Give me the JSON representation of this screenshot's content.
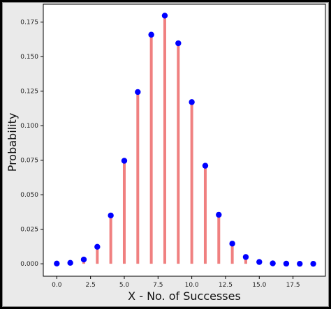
{
  "chart_data": {
    "type": "scatter",
    "title": "",
    "xlabel": "X - No. of Successes",
    "ylabel": "Probability",
    "xlim": [
      -1.0,
      19.9
    ],
    "ylim": [
      -0.009,
      0.188
    ],
    "xticks": [
      0.0,
      2.5,
      5.0,
      7.5,
      10.0,
      12.5,
      15.0,
      17.5
    ],
    "xtick_labels": [
      "0.0",
      "2.5",
      "5.0",
      "7.5",
      "10.0",
      "12.5",
      "15.0",
      "17.5"
    ],
    "yticks": [
      0.0,
      0.025,
      0.05,
      0.075,
      0.1,
      0.125,
      0.15,
      0.175
    ],
    "ytick_labels": [
      "0.000",
      "0.025",
      "0.050",
      "0.075",
      "0.100",
      "0.125",
      "0.150",
      "0.175"
    ],
    "grid": false,
    "marker_color": "#0000ff",
    "stem_color": "#f08080",
    "x": [
      0,
      1,
      2,
      3,
      4,
      5,
      6,
      7,
      8,
      9,
      10,
      11,
      12,
      13,
      14,
      15,
      16,
      17,
      18,
      19
    ],
    "y": [
      0.0002,
      0.0007,
      0.0031,
      0.0123,
      0.035,
      0.0746,
      0.1244,
      0.1659,
      0.1797,
      0.1597,
      0.1171,
      0.071,
      0.0355,
      0.0146,
      0.0049,
      0.0013,
      0.0003,
      0.0001,
      0.0,
      0.0
    ]
  }
}
